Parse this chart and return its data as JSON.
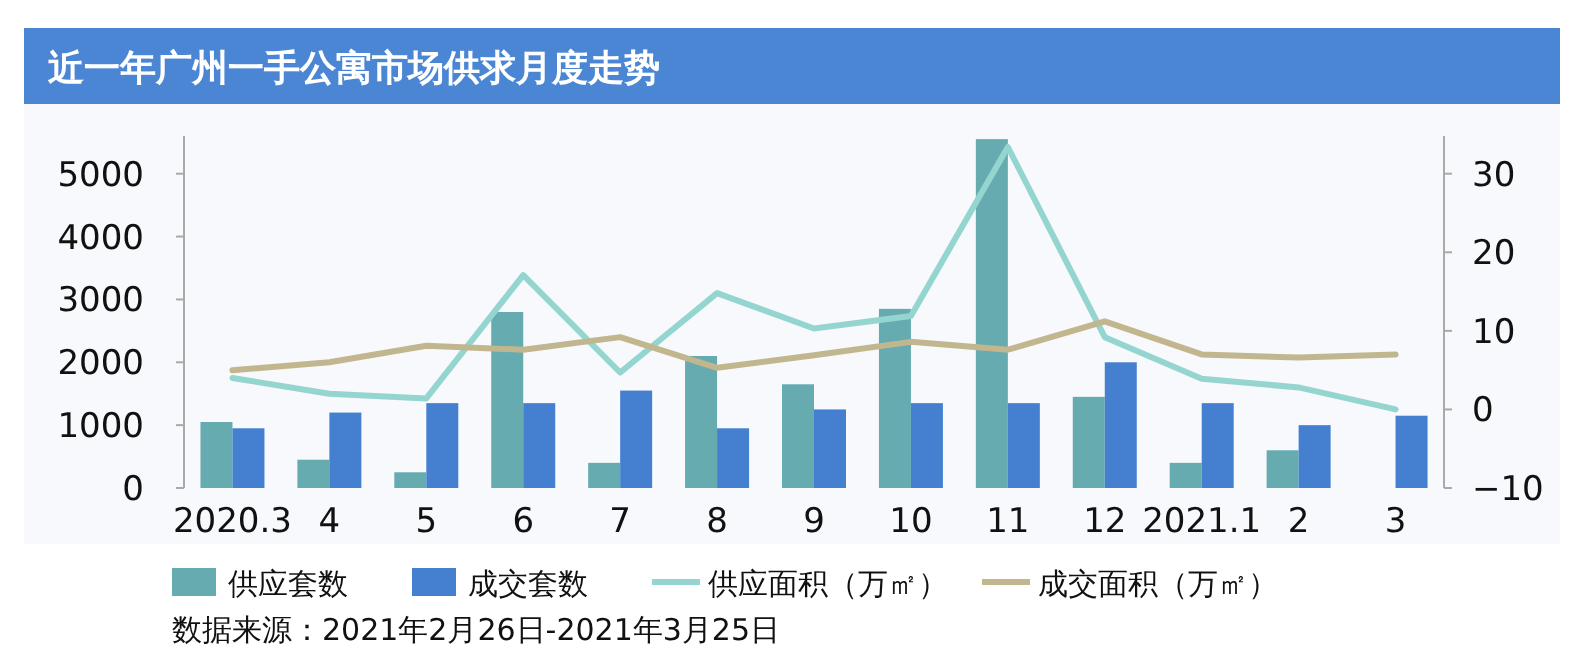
{
  "chart_data": {
    "type": "bar",
    "title": "近一年广州一手公寓市场供求月度走势",
    "categories": [
      "2020.3",
      "4",
      "5",
      "6",
      "7",
      "8",
      "9",
      "10",
      "11",
      "12",
      "2021.1",
      "2",
      "3"
    ],
    "series": [
      {
        "name": "供应套数",
        "color": "#65abb0",
        "values": [
          1050,
          450,
          250,
          2800,
          400,
          2100,
          1650,
          2850,
          5550,
          1450,
          400,
          600,
          null
        ]
      },
      {
        "name": "成交套数",
        "color": "#4580d0",
        "values": [
          950,
          1200,
          1350,
          1350,
          1550,
          950,
          1250,
          1350,
          1350,
          2000,
          1350,
          1000,
          1150
        ]
      },
      {
        "name": "供应面积（万㎡）",
        "type": "line",
        "axis": "y2",
        "color": "#95d5d0",
        "values": [
          4.0,
          2.0,
          1.4,
          17.1,
          4.7,
          14.8,
          10.3,
          11.9,
          33.4,
          9.2,
          3.9,
          2.8,
          0
        ]
      },
      {
        "name": "成交面积（万㎡）",
        "type": "line",
        "axis": "y2",
        "color": "#c2b68e",
        "values": [
          5.0,
          6.0,
          8.1,
          7.6,
          9.2,
          5.3,
          6.9,
          8.6,
          7.6,
          11.2,
          7.0,
          6.6,
          7.0
        ]
      }
    ],
    "ylim": [
      0,
      5600
    ],
    "yticks": [
      0,
      1000,
      2000,
      3000,
      4000,
      5000
    ],
    "y2lim": [
      -10,
      34.8
    ],
    "y2ticks": [
      -10,
      0,
      10,
      20,
      30
    ],
    "legend": "bottom",
    "grid": false,
    "annotations": [
      "数据来源：2021年2月26日-2021年3月25日"
    ]
  }
}
